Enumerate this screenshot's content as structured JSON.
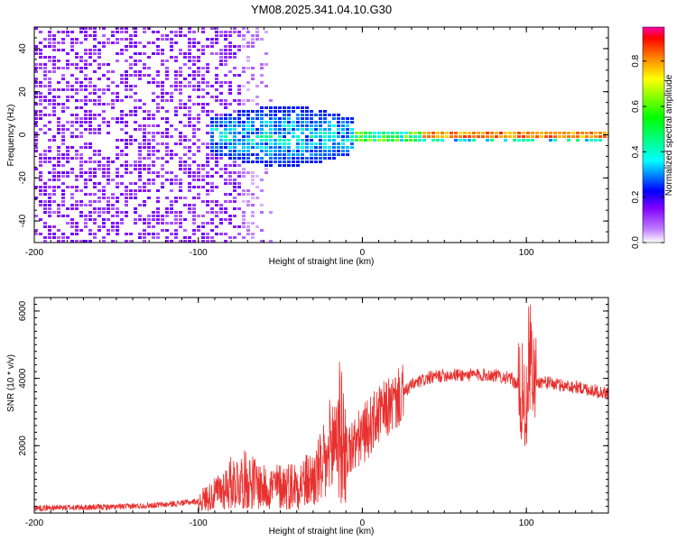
{
  "chart_data": [
    {
      "type": "heatmap",
      "title": "YM08.2025.341.04.10.G30",
      "xlabel": "Height of straight line (km)",
      "ylabel": "Frequency (Hz)",
      "xlim": [
        -200,
        150
      ],
      "ylim": [
        -50,
        50
      ],
      "xticks": [
        -200,
        -100,
        0,
        100
      ],
      "xtick_labels": [
        "-200",
        "-100",
        "0",
        "100"
      ],
      "yticks": [
        -40,
        -20,
        0,
        20,
        40
      ],
      "ytick_labels": [
        "-40",
        "-20",
        "0",
        "20",
        "40"
      ],
      "colorbar": {
        "label": "Normalized spectral amplitude",
        "range": [
          0,
          0.95
        ],
        "ticks": [
          0.0,
          0.2,
          0.4,
          0.6,
          0.8
        ],
        "tick_labels": [
          "0.0",
          "0.2",
          "0.4",
          "0.6",
          "0.8"
        ],
        "colormap": [
          "#ffffff",
          "#b300ff",
          "#0000ff",
          "#00ffff",
          "#00ff00",
          "#ffff00",
          "#ff8000",
          "#ff0000",
          "#ff00aa"
        ]
      },
      "description_regions": [
        {
          "x": [
            -200,
            -65
          ],
          "freq": [
            -50,
            50
          ],
          "level": 0.12
        },
        {
          "x": [
            -100,
            -10
          ],
          "freq": [
            -12,
            12
          ],
          "level": 0.3
        },
        {
          "x": [
            -10,
            30
          ],
          "freq": [
            -4,
            4
          ],
          "level": 0.5
        },
        {
          "x": [
            30,
            150
          ],
          "freq": [
            -1.5,
            1.5
          ],
          "level": 0.85
        }
      ]
    },
    {
      "type": "line",
      "xlabel": "Height of straight line (km)",
      "ylabel": "SNR (10 * v/v)",
      "xlim": [
        -200,
        150
      ],
      "ylim": [
        0,
        6400
      ],
      "xticks": [
        -200,
        -100,
        0,
        100
      ],
      "xtick_labels": [
        "-200",
        "-100",
        "0",
        "100"
      ],
      "yticks": [
        2000,
        4000,
        6000
      ],
      "ytick_labels": [
        "2000",
        "4000",
        "6000"
      ],
      "color": "#e8312f",
      "series": [
        {
          "name": "SNR",
          "x": [
            -200,
            -150,
            -120,
            -100,
            -90,
            -80,
            -70,
            -60,
            -50,
            -40,
            -30,
            -20,
            -15,
            -10,
            -5,
            0,
            10,
            20,
            30,
            40,
            50,
            60,
            70,
            80,
            90,
            95,
            100,
            103,
            105,
            110,
            120,
            130,
            140,
            150
          ],
          "y": [
            150,
            180,
            250,
            350,
            550,
            900,
            1000,
            750,
            800,
            850,
            1000,
            1600,
            2600,
            1800,
            2000,
            2300,
            2900,
            3300,
            3800,
            4000,
            4100,
            4100,
            4100,
            4100,
            4000,
            3800,
            3100,
            4200,
            3900,
            3900,
            3800,
            3750,
            3650,
            3550
          ]
        }
      ]
    }
  ]
}
